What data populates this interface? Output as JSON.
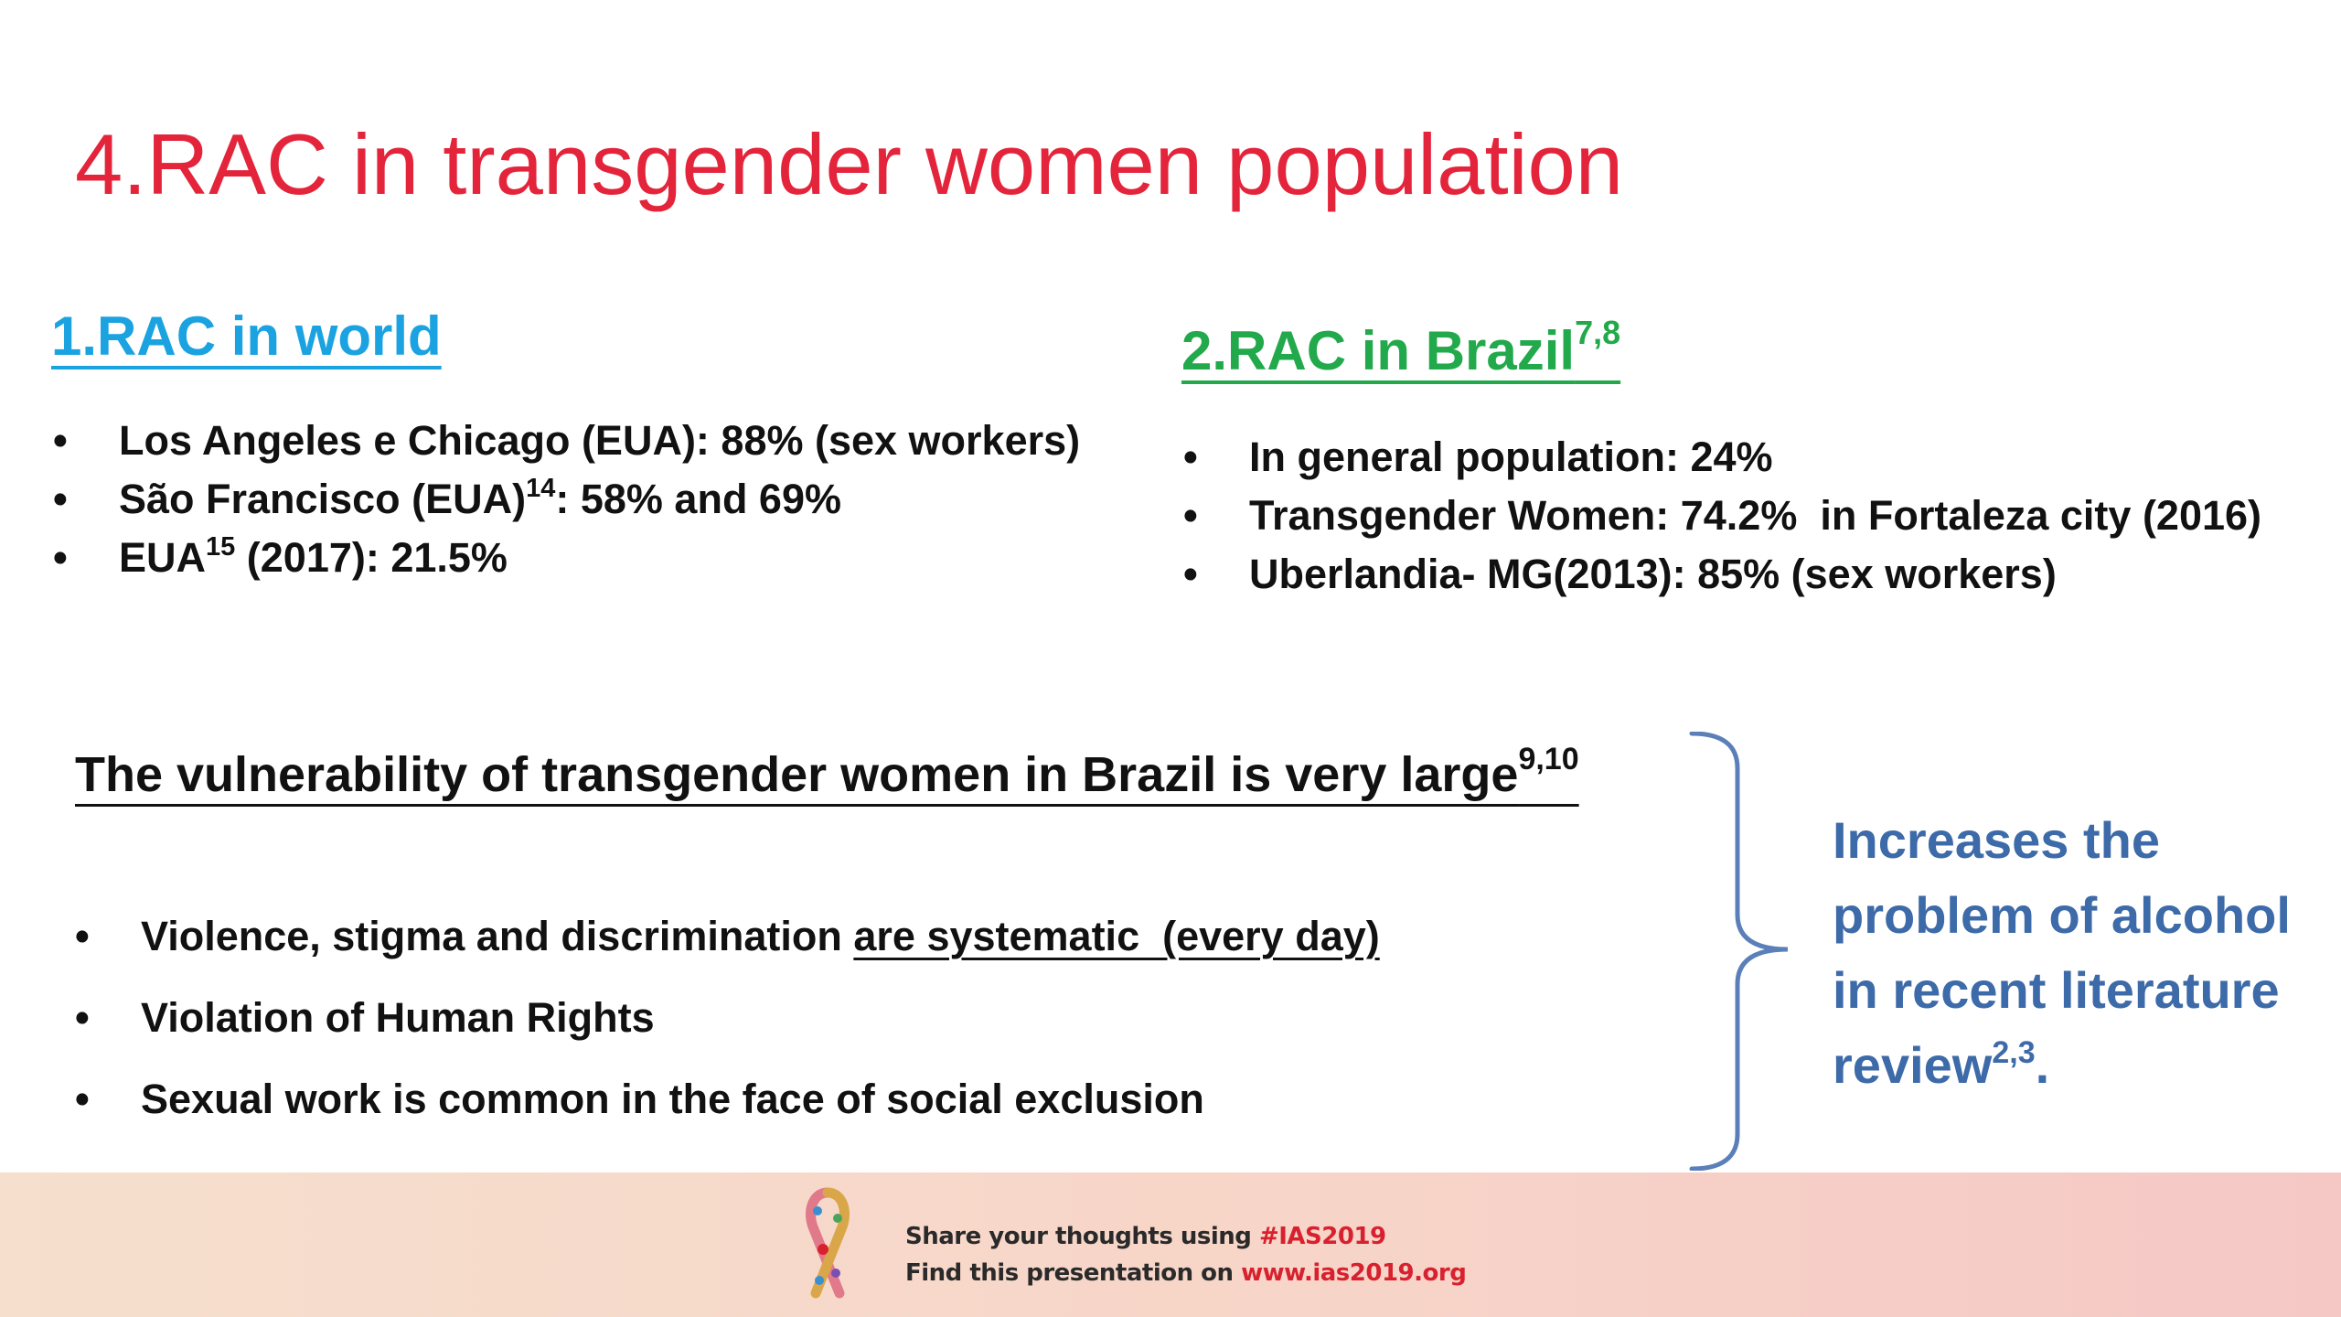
{
  "title": "4.RAC in transgender women population",
  "world": {
    "heading": "1.RAC in world",
    "items": [
      {
        "text": "Los Angeles e Chicago (EUA): 88% (sex workers)",
        "pre": "",
        "sup": "",
        "post": ""
      },
      {
        "pre": "São Francisco (EUA)",
        "sup": "14",
        "post": ": 58% and 69%"
      },
      {
        "pre": "EUA",
        "sup": "15",
        "post": " (2017): 21.5%"
      }
    ]
  },
  "brazil": {
    "heading": "2.RAC in Brazil",
    "heading_sup": "7,8",
    "items": [
      "In general population: 24%",
      "Transgender Women: 74.2%  in Fortaleza city (2016)",
      "Uberlandia- MG(2013): 85% (sex workers)"
    ]
  },
  "vulnerability": {
    "heading": "The vulnerability of transgender women in Brazil is very large",
    "heading_sup": "9,10",
    "items": [
      {
        "pre": "Violence, stigma and discrimination ",
        "underlined": "are systematic  (every day)"
      },
      {
        "text": "Violation of Human Rights"
      },
      {
        "text": "Sexual work is common in the face of social exclusion"
      }
    ]
  },
  "callout": {
    "text": "Increases the problem of alcohol in recent literature review",
    "sup": "2,3",
    "end": "."
  },
  "footer": {
    "line1_prefix": "Share your thoughts using ",
    "line1_highlight": "#IAS2019",
    "line2_prefix": "Find this presentation on ",
    "line2_highlight": "www.ias2019.org"
  },
  "colors": {
    "title": "#e3243b",
    "world_heading": "#1aa3e0",
    "brazil_heading": "#22a94b",
    "callout": "#3d6aa8",
    "footer_highlight": "#d8212f",
    "brace": "#5b7fb8"
  },
  "icons": {
    "footer_logo": "ribbon-icon"
  }
}
